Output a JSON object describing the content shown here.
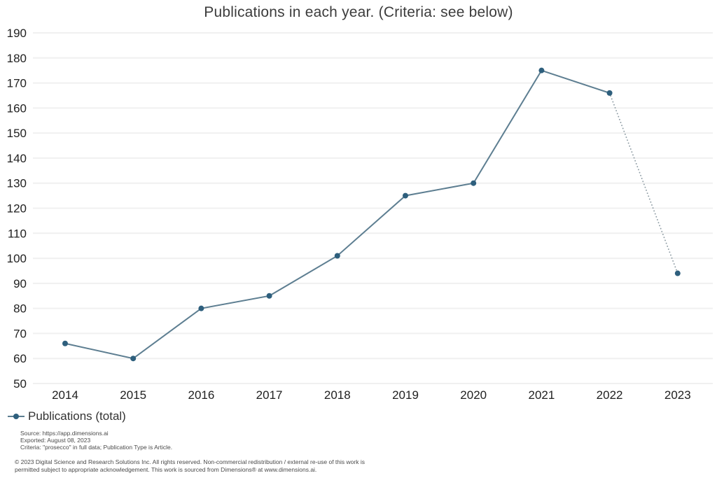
{
  "title": "Publications in each year. (Criteria: see below)",
  "chart_data": {
    "type": "line",
    "x": [
      "2014",
      "2015",
      "2016",
      "2017",
      "2018",
      "2019",
      "2020",
      "2021",
      "2022",
      "2023"
    ],
    "series": [
      {
        "name": "Publications (total)",
        "values": [
          66,
          60,
          80,
          85,
          101,
          125,
          130,
          175,
          166,
          94
        ]
      }
    ],
    "title": "Publications in each year. (Criteria: see below)",
    "xlabel": "",
    "ylabel": "",
    "ylim": [
      50,
      190
    ],
    "ytick_step": 10,
    "grid": "horizontal",
    "legend_position": "bottom-left",
    "last_segment_style": "dotted",
    "colors": {
      "line": "#5d7e91",
      "point": "#2e5f7d",
      "dotted_segment": "#8e9ca4",
      "grid": "#f0f0f0",
      "tick_label": "#212121"
    }
  },
  "legend": {
    "label": "Publications (total)"
  },
  "footnotes": {
    "source": "Source: https://app.dimensions.ai",
    "exported": "Exported: August 08, 2023",
    "criteria": "Criteria: \"prosecco\" in full data; Publication Type is Article."
  },
  "copyright": "© 2023 Digital Science and Research Solutions Inc. All rights reserved. Non-commercial redistribution / external re-use of this work is permitted subject to appropriate acknowledgement. This work is sourced from Dimensions® at www.dimensions.ai."
}
